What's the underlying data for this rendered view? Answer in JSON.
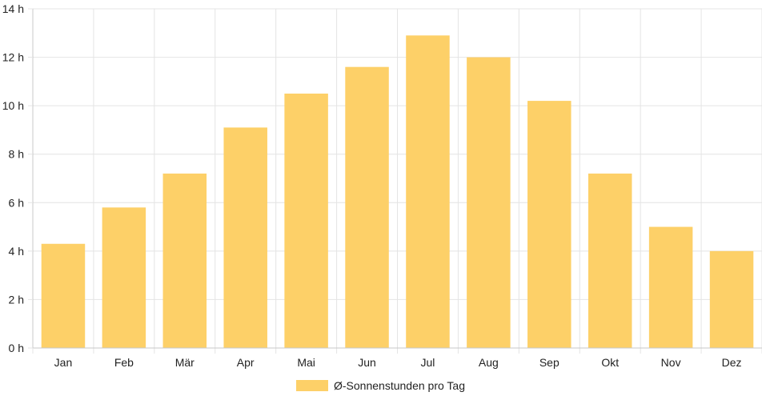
{
  "chart_data": {
    "type": "bar",
    "categories": [
      "Jan",
      "Feb",
      "Mär",
      "Apr",
      "Mai",
      "Jun",
      "Jul",
      "Aug",
      "Sep",
      "Okt",
      "Nov",
      "Dez"
    ],
    "series": [
      {
        "name": "Ø-Sonnenstunden pro Tag",
        "values": [
          4.3,
          5.8,
          7.2,
          9.1,
          10.5,
          11.6,
          12.9,
          12.0,
          10.2,
          7.2,
          5.0,
          4.0
        ],
        "color": "#fdd068"
      }
    ],
    "y_ticks": [
      "0 h",
      "2 h",
      "4 h",
      "6 h",
      "8 h",
      "10 h",
      "12 h",
      "14 h"
    ],
    "ylim": [
      0,
      14
    ],
    "grid": true,
    "legend_position": "bottom"
  }
}
